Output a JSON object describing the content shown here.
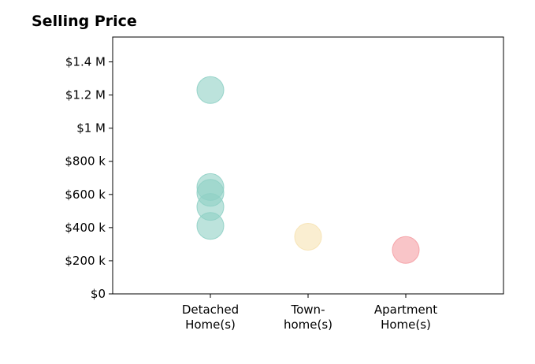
{
  "chart_data": {
    "type": "scatter",
    "title": "Selling Price",
    "xlabel": "",
    "ylabel": "",
    "categories": [
      "Detached\nHome(s)",
      "Town-\nhome(s)",
      "Apartment\nHome(s)"
    ],
    "ylim": [
      0,
      1550000
    ],
    "yticks": [
      {
        "value": 0,
        "label": "$0"
      },
      {
        "value": 200000,
        "label": "$200 k"
      },
      {
        "value": 400000,
        "label": "$400 k"
      },
      {
        "value": 600000,
        "label": "$600 k"
      },
      {
        "value": 800000,
        "label": "$800 k"
      },
      {
        "value": 1000000,
        "label": "$1 M"
      },
      {
        "value": 1200000,
        "label": "$1.2 M"
      },
      {
        "value": 1400000,
        "label": "$1.4 M"
      }
    ],
    "points": [
      {
        "category": "Detached\nHome(s)",
        "value": 1230000,
        "color": "#8fd0c5"
      },
      {
        "category": "Detached\nHome(s)",
        "value": 645000,
        "color": "#8fd0c5"
      },
      {
        "category": "Detached\nHome(s)",
        "value": 610000,
        "color": "#8fd0c5"
      },
      {
        "category": "Detached\nHome(s)",
        "value": 525000,
        "color": "#8fd0c5"
      },
      {
        "category": "Detached\nHome(s)",
        "value": 410000,
        "color": "#8fd0c5"
      },
      {
        "category": "Town-\nhome(s)",
        "value": 345000,
        "color": "#f6e2b3"
      },
      {
        "category": "Apartment\nHome(s)",
        "value": 265000,
        "color": "#f59ea4"
      }
    ],
    "grid": false,
    "legend": "none"
  }
}
